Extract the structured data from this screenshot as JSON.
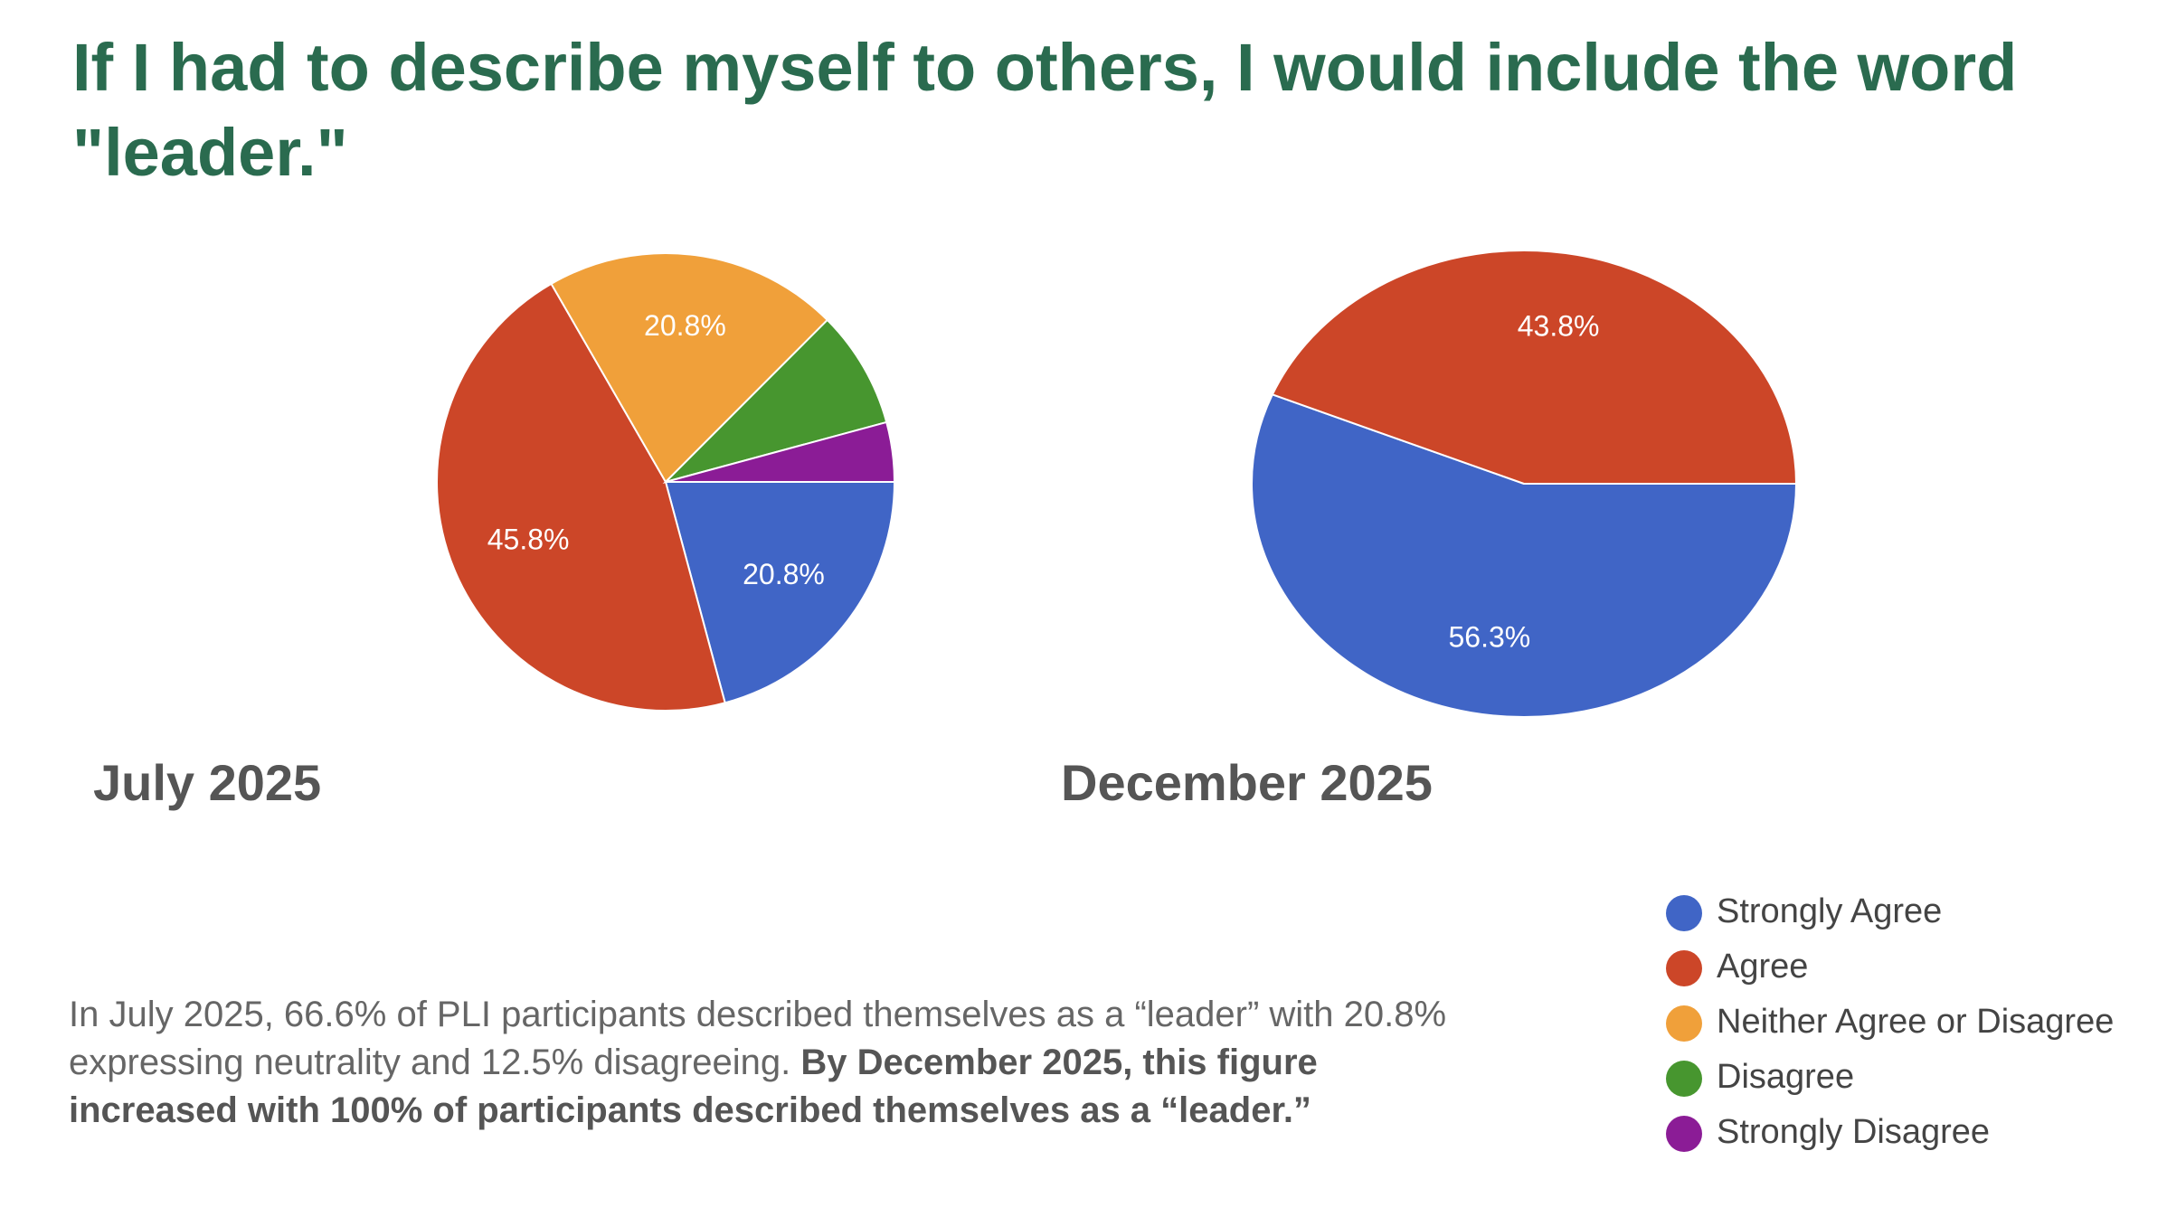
{
  "title": "If I had to describe myself to others, I would include the word \"leader.\"",
  "chart_data": [
    {
      "type": "pie",
      "title": "July 2025",
      "categories": [
        "Strongly Agree",
        "Agree",
        "Neither Agree or Disagree",
        "Disagree",
        "Strongly Disagree"
      ],
      "values": [
        20.8,
        45.8,
        20.8,
        8.3,
        4.2
      ],
      "value_labels": [
        "20.8%",
        "45.8%",
        "20.8%",
        null,
        null
      ],
      "colors": [
        "#4065c6",
        "#cc4628",
        "#f0a03a",
        "#47962f",
        "#8b1c96"
      ]
    },
    {
      "type": "pie",
      "title": "December 2025",
      "categories": [
        "Strongly Agree",
        "Agree"
      ],
      "values": [
        56.3,
        43.8
      ],
      "value_labels": [
        "56.3%",
        "43.8%"
      ],
      "colors": [
        "#4065c6",
        "#cc4628"
      ]
    }
  ],
  "note": {
    "text": "In July 2025, 66.6% of PLI participants described themselves as a “leader” with 20.8% expressing neutrality and 12.5% disagreeing.",
    "bold": "By December 2025, this figure increased with 100% of participants described themselves as a “leader.”"
  }
}
